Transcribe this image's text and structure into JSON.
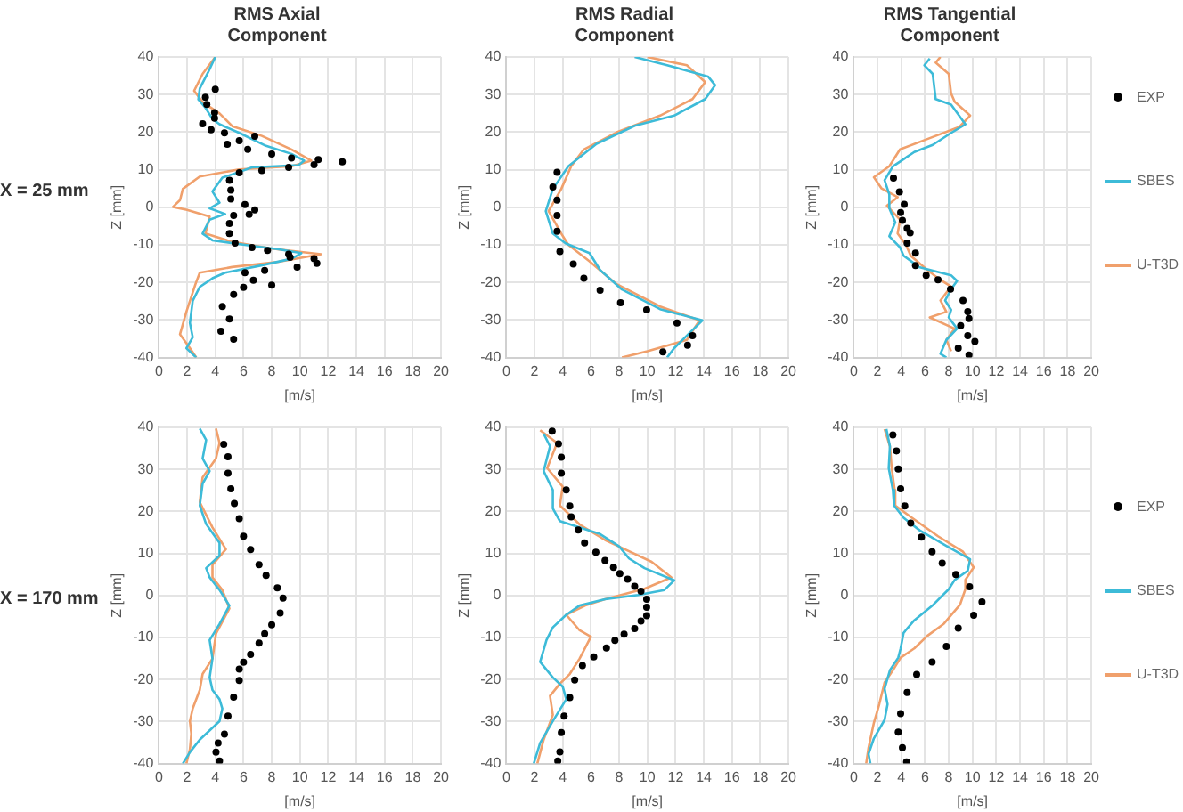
{
  "chart_data": [
    {
      "type": "line",
      "title": "RMS Axial Component",
      "xlabel": "[m/s]",
      "ylabel": "Z [mm]",
      "annotations": [
        "X = 25 mm"
      ],
      "xlim": [
        0,
        20
      ],
      "xticks": [
        0,
        2,
        4,
        6,
        8,
        10,
        12,
        14,
        16,
        18,
        20
      ],
      "ylim": [
        -40,
        40
      ],
      "yticks": [
        -40,
        -30,
        -20,
        -10,
        0,
        10,
        20,
        30,
        40
      ],
      "grid": true,
      "legend": false,
      "series": [
        {
          "type": "scatter",
          "marker": "circle",
          "color": "#000000",
          "x": [
            4.0,
            3.3,
            3.4,
            3.95,
            3.95,
            3.1,
            3.7,
            4.65,
            6.8,
            5.7,
            4.85,
            6.3,
            8.0,
            9.4,
            11.3,
            13.0,
            11.0,
            9.2,
            7.3,
            5.7,
            5.0,
            5.1,
            5.1,
            6.1,
            6.8,
            6.4,
            5.3,
            5.0,
            5.0,
            5.4,
            6.6,
            7.7,
            9.2,
            9.3,
            11.0,
            11.2,
            9.8,
            7.5,
            6.1,
            6.7,
            8.0,
            6.0,
            5.3,
            4.5,
            5.0,
            4.4,
            5.3
          ],
          "values": [
            31.4,
            29.3,
            27.4,
            25.2,
            23.7,
            22.2,
            20.6,
            19.8,
            18.9,
            17.7,
            16.8,
            15.4,
            14.2,
            13.1,
            12.7,
            12.1,
            11.3,
            10.6,
            9.8,
            9.2,
            7.2,
            4.6,
            2.2,
            0.7,
            -0.7,
            -1.9,
            -2.2,
            -4.3,
            -7.0,
            -9.5,
            -10.7,
            -11.5,
            -12.5,
            -13.3,
            -13.7,
            -14.9,
            -15.9,
            -16.8,
            -17.4,
            -19.4,
            -20.7,
            -21.3,
            -23.2,
            -26.4,
            -29.7,
            -33.0,
            -35.1
          ]
        },
        {
          "type": "line",
          "color": "#3dbbd8",
          "x": [
            4.0,
            3.5,
            2.9,
            2.8,
            3.3,
            3.8,
            4.3,
            5.7,
            7.5,
            9.4,
            10.3,
            9.9,
            6.6,
            5.7,
            4.5,
            3.8,
            4.3,
            3.6,
            4.7,
            3.6,
            3.1,
            3.8,
            6.1,
            8.5,
            10.1,
            9.4,
            7.1,
            4.7,
            3.8,
            2.9,
            2.4,
            2.2,
            2.4,
            1.95,
            2.65
          ],
          "values": [
            40,
            36,
            31.6,
            28.7,
            26.5,
            23.5,
            22.1,
            19.8,
            16.5,
            14.2,
            12.4,
            11.2,
            10.6,
            9.4,
            7.9,
            4.2,
            1.2,
            -0.3,
            -1.8,
            -3.3,
            -7.0,
            -8.8,
            -10,
            -11.2,
            -12.2,
            -13.7,
            -15.6,
            -17.4,
            -18.9,
            -21.2,
            -24.9,
            -30.8,
            -34.6,
            -37.5,
            -40
          ]
        },
        {
          "type": "line",
          "color": "#f0a06c",
          "x": [
            4,
            3.1,
            2.5,
            3.1,
            4.3,
            5.2,
            7.3,
            9.4,
            10.8,
            9.4,
            5.7,
            2.9,
            1.7,
            1.5,
            1.0,
            2.0,
            3.6,
            3.3,
            5.2,
            8.0,
            11.5,
            8.5,
            5.2,
            2.9,
            2.6,
            1.95,
            1.5,
            2.2,
            2.65
          ],
          "values": [
            40,
            35.5,
            31,
            28,
            25,
            21.6,
            19,
            15.4,
            12.4,
            10.9,
            10.1,
            8.2,
            4.9,
            1.9,
            0.1,
            -0.7,
            -2.5,
            -7.0,
            -9.2,
            -11.0,
            -12.5,
            -14.5,
            -15.9,
            -17.4,
            -20.4,
            -27.8,
            -33.8,
            -37.5,
            -40
          ]
        }
      ]
    },
    {
      "type": "line",
      "title": "RMS Radial Component",
      "xlabel": "[m/s]",
      "ylabel": "Z [mm]",
      "xlim": [
        0,
        20
      ],
      "xticks": [
        0,
        2,
        4,
        6,
        8,
        10,
        12,
        14,
        16,
        18,
        20
      ],
      "ylim": [
        -40,
        40
      ],
      "yticks": [
        -40,
        -30,
        -20,
        -10,
        0,
        10,
        20,
        30,
        40
      ],
      "grid": true,
      "legend": false,
      "series": [
        {
          "type": "scatter",
          "marker": "circle",
          "color": "#000000",
          "x": [
            3.6,
            3.3,
            3.6,
            3.6,
            3.6,
            3.8,
            4.75,
            5.5,
            6.65,
            8.1,
            9.95,
            12.1,
            13.2,
            12.85,
            11.1
          ],
          "values": [
            9.3,
            5.4,
            1.9,
            -2.2,
            -6.4,
            -11.8,
            -15.1,
            -18.9,
            -22.1,
            -25.4,
            -27.3,
            -30.8,
            -34.2,
            -36.7,
            -38.5
          ]
        },
        {
          "type": "line",
          "color": "#3dbbd8",
          "x": [
            9.1,
            11.4,
            14.3,
            14.8,
            14.1,
            11.9,
            9.1,
            6.4,
            4.4,
            3.3,
            2.8,
            3.3,
            4.2,
            5.9,
            6.65,
            8.2,
            10.9,
            13.9,
            12.9,
            11.9,
            11.4
          ],
          "values": [
            40,
            37.8,
            34.8,
            32.5,
            28.8,
            24.4,
            21.7,
            16.9,
            10.9,
            4.9,
            -1.0,
            -7.0,
            -9.6,
            -12.2,
            -16.7,
            -21.9,
            -27.1,
            -30.1,
            -33.8,
            -37.5,
            -40
          ]
        },
        {
          "type": "line",
          "color": "#f0a06c",
          "x": [
            10,
            12.8,
            14.1,
            13.2,
            10.9,
            7.8,
            5.5,
            4.6,
            3.9,
            3.0,
            3.9,
            4.4,
            5.9,
            7.8,
            10.9,
            13.7,
            12.8,
            10,
            8.2
          ],
          "values": [
            40,
            37.8,
            33.3,
            28.8,
            24.4,
            19.9,
            15.4,
            10.9,
            4.9,
            -1,
            -7,
            -10,
            -14.4,
            -20.4,
            -26.4,
            -30.1,
            -35.3,
            -38.3,
            -40
          ]
        }
      ]
    },
    {
      "type": "line",
      "title": "RMS Tangential Component",
      "xlabel": "[m/s]",
      "ylabel": "Z [mm]",
      "xlim": [
        0,
        20
      ],
      "xticks": [
        0,
        2,
        4,
        6,
        8,
        10,
        12,
        14,
        16,
        18,
        20
      ],
      "ylim": [
        -40,
        40
      ],
      "yticks": [
        -40,
        -30,
        -20,
        -10,
        0,
        10,
        20,
        30,
        40
      ],
      "grid": true,
      "legend": "right",
      "series": [
        {
          "type": "scatter",
          "marker": "circle",
          "name": "EXP",
          "color": "#000000",
          "x": [
            3.35,
            3.85,
            4.25,
            3.95,
            4.1,
            4.5,
            4.75,
            4.5,
            5.2,
            5.2,
            6.1,
            7.1,
            8.15,
            9.2,
            9.6,
            9.7,
            9.0,
            9.6,
            10.2,
            8.8,
            9.7
          ],
          "values": [
            7.8,
            4.1,
            0.8,
            -1.4,
            -3.5,
            -5.6,
            -6.8,
            -9.5,
            -12.2,
            -15.5,
            -18.1,
            -19.3,
            -21.8,
            -24.8,
            -27.8,
            -29.6,
            -31.5,
            -34.2,
            -35.7,
            -37.5,
            -39.3
          ]
        },
        {
          "type": "line",
          "name": "SBES",
          "color": "#3dbbd8",
          "x": [
            6.4,
            5.95,
            6.65,
            6.9,
            8.2,
            9.4,
            8.2,
            6.65,
            5.1,
            3.3,
            2.6,
            3.0,
            3.0,
            3.5,
            3.0,
            3.9,
            4.2,
            5.5,
            8.2,
            8.7,
            8.2,
            7.7,
            8.2,
            8.0,
            8.7,
            7.8,
            7.3,
            7.8
          ],
          "values": [
            39.6,
            37.8,
            35.5,
            28.8,
            27.3,
            22.1,
            19.8,
            16.6,
            14.7,
            10.9,
            7.2,
            3.4,
            -0.3,
            -4.0,
            -7.7,
            -10.7,
            -12.9,
            -15.9,
            -18.1,
            -19.6,
            -21.8,
            -24.8,
            -27.3,
            -29.3,
            -32.3,
            -35.3,
            -39,
            -40
          ]
        },
        {
          "type": "line",
          "name": "U-T3D",
          "color": "#f0a06c",
          "x": [
            7.3,
            6.9,
            8.0,
            8.2,
            8.5,
            9.8,
            8.9,
            6.4,
            3.9,
            3.0,
            1.7,
            2.35,
            3.7,
            2.8,
            3.9,
            3.7,
            4.4,
            4.8,
            6.2,
            7.1,
            8.2,
            7.3,
            7.8,
            6.4,
            8.5,
            7.8,
            8.2
          ],
          "values": [
            40,
            38.5,
            35.5,
            30.3,
            28.1,
            24.4,
            21.4,
            18.4,
            15.4,
            10.9,
            8.0,
            5.0,
            2.7,
            0.4,
            -3.3,
            -7.0,
            -10.0,
            -12.9,
            -16.7,
            -18.9,
            -21.1,
            -24.8,
            -27.8,
            -29.3,
            -32.3,
            -35.3,
            -38.3
          ]
        }
      ]
    },
    {
      "type": "line",
      "xlabel": "[m/s]",
      "ylabel": "Z [mm]",
      "annotations": [
        "X = 170 mm"
      ],
      "xlim": [
        0,
        20
      ],
      "xticks": [
        0,
        2,
        4,
        6,
        8,
        10,
        12,
        14,
        16,
        18,
        20
      ],
      "ylim": [
        -40,
        40
      ],
      "yticks": [
        -40,
        -30,
        -20,
        -10,
        0,
        10,
        20,
        30,
        40
      ],
      "grid": true,
      "legend": false,
      "series": [
        {
          "type": "scatter",
          "marker": "circle",
          "color": "#000000",
          "x": [
            4.6,
            4.9,
            4.9,
            5.1,
            5.35,
            5.7,
            6.0,
            6.5,
            7.1,
            7.6,
            8.4,
            8.8,
            8.6,
            8.0,
            7.5,
            7.1,
            6.5,
            6.0,
            5.7,
            5.7,
            5.3,
            4.9,
            4.65,
            4.2,
            4.05,
            4.3
          ],
          "values": [
            36,
            33,
            29.1,
            25.4,
            21.9,
            18.3,
            14.1,
            10.9,
            7.3,
            4.8,
            1.8,
            -0.6,
            -4.2,
            -7.0,
            -9.1,
            -11.3,
            -14.0,
            -15.9,
            -17.5,
            -20.2,
            -24.2,
            -28.7,
            -33.0,
            -35.1,
            -37.3,
            -39.4
          ]
        },
        {
          "type": "line",
          "color": "#3dbbd8",
          "x": [
            2.9,
            3.35,
            3.1,
            3.6,
            3.1,
            2.9,
            3.35,
            4.3,
            4.3,
            3.35,
            3.6,
            4.3,
            5.0,
            4.3,
            3.6,
            3.8,
            3.6,
            3.8,
            4.3,
            4.5,
            4.3,
            2.9,
            2.2,
            1.7
          ],
          "values": [
            39.7,
            37,
            32.6,
            29.6,
            26.6,
            21.4,
            17,
            12.5,
            9.5,
            6.5,
            4.3,
            1.3,
            -2.4,
            -6.8,
            -10.6,
            -15,
            -19.5,
            -22.5,
            -24.7,
            -26.9,
            -29.9,
            -34.3,
            -37.3,
            -40
          ]
        },
        {
          "type": "line",
          "color": "#f0a06c",
          "x": [
            4.05,
            4.3,
            4.05,
            3.1,
            2.9,
            3.8,
            4.75,
            3.8,
            3.8,
            4.5,
            5.0,
            4.05,
            3.8,
            3.1,
            2.9,
            2.4,
            2.2,
            2.3,
            2.2,
            1.95
          ],
          "values": [
            39.7,
            36.3,
            32.6,
            28.1,
            22.2,
            16.2,
            11,
            7.3,
            4.3,
            1.3,
            -3.1,
            -9.1,
            -15,
            -18.7,
            -22.5,
            -26.9,
            -29.9,
            -32.9,
            -36.6,
            -40
          ]
        }
      ]
    },
    {
      "type": "line",
      "xlabel": "[m/s]",
      "ylabel": "Z [mm]",
      "xlim": [
        0,
        20
      ],
      "xticks": [
        0,
        2,
        4,
        6,
        8,
        10,
        12,
        14,
        16,
        18,
        20
      ],
      "ylim": [
        -40,
        40
      ],
      "yticks": [
        -40,
        -30,
        -20,
        -10,
        0,
        10,
        20,
        30,
        40
      ],
      "grid": true,
      "legend": false,
      "series": [
        {
          "type": "scatter",
          "marker": "circle",
          "color": "#000000",
          "x": [
            3.25,
            3.7,
            3.9,
            3.9,
            4.25,
            4.5,
            4.6,
            5.1,
            5.55,
            6.35,
            7.0,
            7.6,
            8.05,
            8.6,
            9.1,
            9.55,
            9.95,
            9.95,
            9.95,
            9.55,
            9.1,
            8.35,
            7.7,
            7.1,
            6.2,
            5.4,
            4.85,
            4.5,
            4.1,
            3.9,
            3.8,
            3.65
          ],
          "values": [
            39.1,
            36.1,
            32.9,
            29.1,
            25.1,
            21.3,
            18.7,
            15.6,
            12.5,
            10.3,
            8.3,
            6.7,
            5.2,
            3.9,
            2.2,
            1.0,
            -0.9,
            -2.8,
            -4.8,
            -6.1,
            -7.9,
            -9.2,
            -10.7,
            -12.5,
            -14.6,
            -16.7,
            -20.1,
            -24.3,
            -28.7,
            -32.6,
            -37.2,
            -39.4
          ]
        },
        {
          "type": "line",
          "color": "#3dbbd8",
          "x": [
            2.65,
            3.1,
            2.65,
            3.3,
            3.3,
            3.8,
            6.6,
            8.0,
            8.7,
            9.8,
            11.9,
            11.2,
            9.35,
            7.0,
            5.2,
            4.25,
            3.3,
            2.85,
            2.4,
            3.3,
            4.0,
            4.25,
            3.3,
            2.4,
            1.95
          ],
          "values": [
            38.5,
            35.5,
            29.6,
            25.1,
            20.7,
            17.7,
            14.7,
            11.7,
            8.8,
            6.5,
            3.6,
            1.3,
            0.1,
            -0.9,
            -2.4,
            -4.6,
            -7.6,
            -10.6,
            -15.8,
            -19.5,
            -21.7,
            -24.7,
            -29.9,
            -35.1,
            -40
          ]
        },
        {
          "type": "line",
          "color": "#f0a06c",
          "x": [
            2.4,
            3.6,
            2.9,
            4.0,
            3.8,
            5.2,
            7.0,
            8.4,
            10.3,
            11.7,
            9.8,
            7.0,
            5.6,
            4.25,
            5.2,
            6.0,
            5.2,
            4.5,
            3.8,
            3.1,
            3.3,
            2.65,
            2.2
          ],
          "values": [
            39.3,
            36.3,
            30.3,
            25.9,
            21.4,
            16.9,
            13.2,
            11,
            8.0,
            4.3,
            1.6,
            -0.9,
            -2.4,
            -4.6,
            -8.3,
            -9.8,
            -15,
            -18.7,
            -21,
            -23.9,
            -28.4,
            -34.3,
            -40
          ]
        }
      ]
    },
    {
      "type": "line",
      "xlabel": "[m/s]",
      "ylabel": "Z [mm]",
      "xlim": [
        0,
        20
      ],
      "xticks": [
        0,
        2,
        4,
        6,
        8,
        10,
        12,
        14,
        16,
        18,
        20
      ],
      "ylim": [
        -40,
        40
      ],
      "yticks": [
        -40,
        -30,
        -20,
        -10,
        0,
        10,
        20,
        30,
        40
      ],
      "grid": true,
      "legend": "right",
      "series": [
        {
          "type": "scatter",
          "marker": "circle",
          "name": "EXP",
          "color": "#000000",
          "x": [
            3.3,
            3.6,
            3.75,
            3.95,
            4.3,
            4.8,
            5.7,
            6.6,
            7.45,
            8.6,
            9.75,
            10.8,
            10.1,
            8.8,
            7.8,
            6.6,
            5.3,
            4.5,
            3.95,
            3.75,
            4.1,
            4.45
          ],
          "values": [
            38.2,
            34.4,
            30.1,
            25.4,
            21.3,
            17.2,
            13.9,
            10.4,
            7.7,
            5.0,
            2.1,
            -1.5,
            -4.7,
            -7.8,
            -12.1,
            -15.8,
            -18.8,
            -23.1,
            -28.1,
            -32.5,
            -36.2,
            -39.6
          ]
        },
        {
          "type": "line",
          "name": "SBES",
          "color": "#3dbbd8",
          "x": [
            2.75,
            3.05,
            2.95,
            3.3,
            3.4,
            4.2,
            5.55,
            7.8,
            9.8,
            9.6,
            8.5,
            8.0,
            6.7,
            5.1,
            4.2,
            3.95,
            3.75,
            3.05,
            2.6,
            2.85,
            2.6,
            1.7,
            1.25,
            1.4
          ],
          "values": [
            39.6,
            35.5,
            30.3,
            25.1,
            21.4,
            18.5,
            15.5,
            11.8,
            8.6,
            5.9,
            3.7,
            1.5,
            -2.2,
            -5.9,
            -8.9,
            -12.6,
            -14.8,
            -17.8,
            -22.2,
            -25.9,
            -29.6,
            -34.0,
            -37.7,
            -40
          ]
        },
        {
          "type": "line",
          "name": "U-T3D",
          "color": "#f0a06c",
          "x": [
            2.6,
            3.05,
            3.2,
            3.45,
            3.5,
            4.9,
            7.1,
            9.2,
            10.1,
            9.4,
            9.4,
            8.95,
            7.6,
            6.2,
            5.1,
            3.95,
            3.3,
            2.6,
            2.15,
            1.7,
            1.25,
            1.05
          ],
          "values": [
            39.6,
            35.5,
            30.3,
            25.1,
            21.4,
            18.5,
            14.1,
            10.4,
            6.7,
            3.7,
            1.5,
            -2.2,
            -6.7,
            -9.6,
            -12.6,
            -14.8,
            -17.8,
            -20.7,
            -25.9,
            -30.3,
            -36.2,
            -40
          ]
        }
      ]
    }
  ]
}
